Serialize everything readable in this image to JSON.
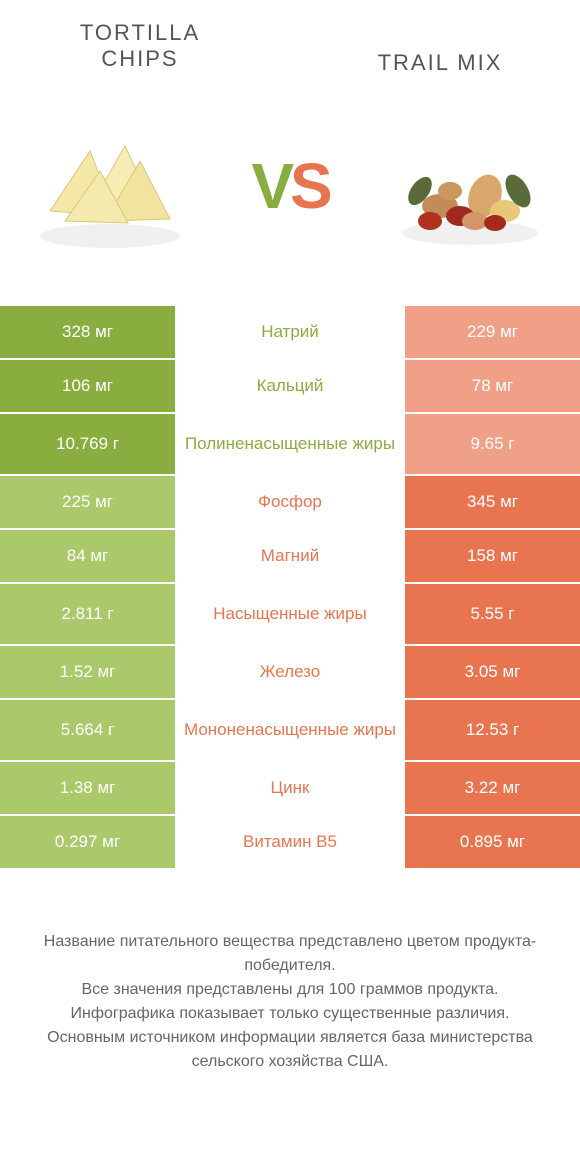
{
  "header": {
    "left_title": "TORTILLA CHIPS",
    "right_title": "TRAIL MIX"
  },
  "vs": {
    "v": "V",
    "s": "S"
  },
  "colors": {
    "green": "#8aad3f",
    "green_light": "#aac96a",
    "orange": "#e8754f",
    "orange_light": "#f0a087",
    "text_gray": "#555555"
  },
  "nutrients": [
    {
      "label": "Натрий",
      "left": "328 мг",
      "right": "229 мг",
      "winner": "left",
      "tall": false
    },
    {
      "label": "Кальций",
      "left": "106 мг",
      "right": "78 мг",
      "winner": "left",
      "tall": false
    },
    {
      "label": "Полиненасыщенные жиры",
      "left": "10.769 г",
      "right": "9.65 г",
      "winner": "left",
      "tall": true
    },
    {
      "label": "Фосфор",
      "left": "225 мг",
      "right": "345 мг",
      "winner": "right",
      "tall": false
    },
    {
      "label": "Магний",
      "left": "84 мг",
      "right": "158 мг",
      "winner": "right",
      "tall": false
    },
    {
      "label": "Насыщенные жиры",
      "left": "2.811 г",
      "right": "5.55 г",
      "winner": "right",
      "tall": true
    },
    {
      "label": "Железо",
      "left": "1.52 мг",
      "right": "3.05 мг",
      "winner": "right",
      "tall": false
    },
    {
      "label": "Мононенасыщенные жиры",
      "left": "5.664 г",
      "right": "12.53 г",
      "winner": "right",
      "tall": true
    },
    {
      "label": "Цинк",
      "left": "1.38 мг",
      "right": "3.22 мг",
      "winner": "right",
      "tall": false
    },
    {
      "label": "Витамин B5",
      "left": "0.297 мг",
      "right": "0.895 мг",
      "winner": "right",
      "tall": false
    }
  ],
  "footer": {
    "line1": "Название питательного вещества представлено цветом продукта-победителя.",
    "line2": "Все значения представлены для 100 граммов продукта.",
    "line3": "Инфографика показывает только существенные различия.",
    "line4": "Основным источником информации является база министерства сельского хозяйства США."
  }
}
